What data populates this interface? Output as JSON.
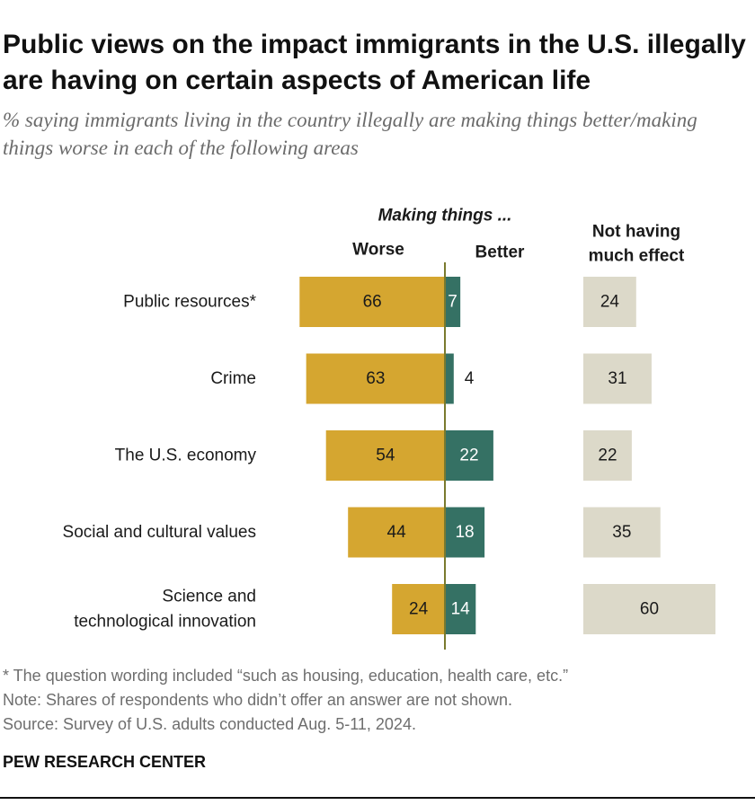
{
  "chart_data": {
    "type": "bar",
    "title": "Public views on the impact immigrants in the U.S. illegally are having on certain aspects of American life",
    "subtitle": "% saying immigrants living in the country illegally are making things better/making things worse in each of the following areas",
    "group_header": "Making things ...",
    "categories": [
      [
        "Public resources*"
      ],
      [
        "Crime"
      ],
      [
        "The U.S. economy"
      ],
      [
        "Social and cultural values"
      ],
      [
        "Science and",
        "technological innovation"
      ]
    ],
    "series": [
      {
        "name": "Worse",
        "color": "#d5a630",
        "values": [
          66,
          63,
          54,
          44,
          24
        ]
      },
      {
        "name": "Better",
        "color": "#357164",
        "values": [
          7,
          4,
          22,
          18,
          14
        ]
      },
      {
        "name": "Not having much effect",
        "label_lines": [
          "Not having",
          "much effect"
        ],
        "color": "#dcd9c9",
        "values": [
          24,
          31,
          22,
          35,
          60
        ]
      }
    ],
    "xlabel": "",
    "ylabel": "",
    "axis_color": "#7a7a2e"
  },
  "footer": {
    "footnote": "* The question wording included “such as housing, education, health care, etc.”",
    "note": "Note: Shares of respondents who didn’t offer an answer are not shown.",
    "source": "Source: Survey of U.S. adults conducted Aug. 5-11, 2024.",
    "org": "PEW RESEARCH CENTER"
  }
}
